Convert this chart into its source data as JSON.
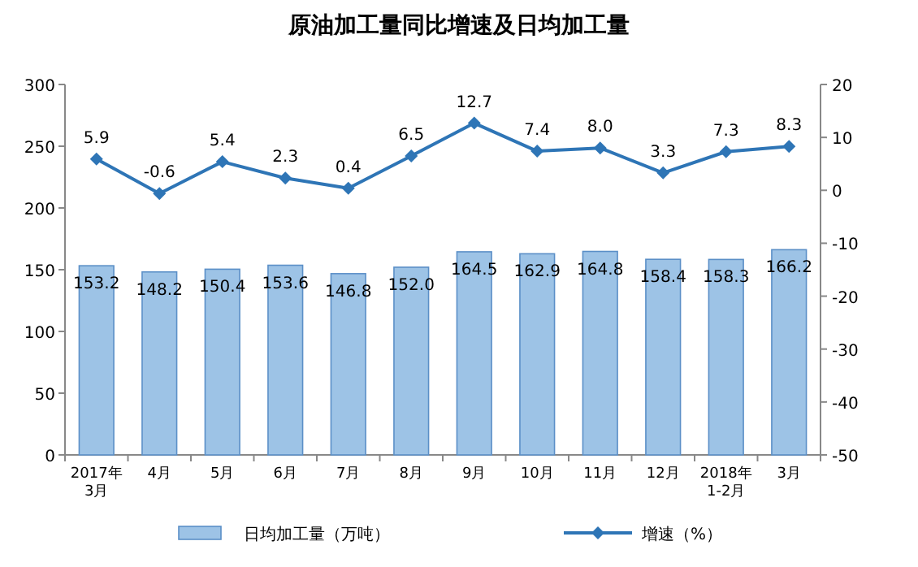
{
  "chart_data": {
    "type": "bar",
    "title": "原油加工量同比增速及日均加工量",
    "categories": [
      "2017年\n3月",
      "4月",
      "5月",
      "6月",
      "7月",
      "8月",
      "9月",
      "10月",
      "11月",
      "12月",
      "2018年\n1-2月",
      "3月"
    ],
    "series": [
      {
        "name": "日均加工量（万吨）",
        "color": "#9dc3e6",
        "values": [
          153.2,
          148.2,
          150.4,
          153.6,
          146.8,
          152.0,
          164.5,
          162.9,
          164.8,
          158.4,
          158.3,
          166.2
        ],
        "value_labels": [
          "153.2",
          "148.2",
          "150.4",
          "153.6",
          "146.8",
          "152.0",
          "164.5",
          "162.9",
          "164.8",
          "158.4",
          "158.3",
          "166.2"
        ]
      },
      {
        "name": "增速（%）",
        "type": "line",
        "axis": "y2",
        "color": "#2e75b6",
        "marker": "diamond",
        "values": [
          5.9,
          -0.6,
          5.4,
          2.3,
          0.4,
          6.5,
          12.7,
          7.4,
          8.0,
          3.3,
          7.3,
          8.3
        ],
        "value_labels": [
          "5.9",
          "-0.6",
          "5.4",
          "2.3",
          "0.4",
          "6.5",
          "12.7",
          "7.4",
          "8.0",
          "3.3",
          "7.3",
          "8.3"
        ]
      }
    ],
    "ylim": [
      0,
      300
    ],
    "yticks": [
      0,
      50,
      100,
      150,
      200,
      250,
      300
    ],
    "y2lim": [
      -50,
      20
    ],
    "y2ticks": [
      -50,
      -40,
      -30,
      -20,
      -10,
      0,
      10,
      20
    ],
    "grid": false,
    "legend": "bottom"
  }
}
